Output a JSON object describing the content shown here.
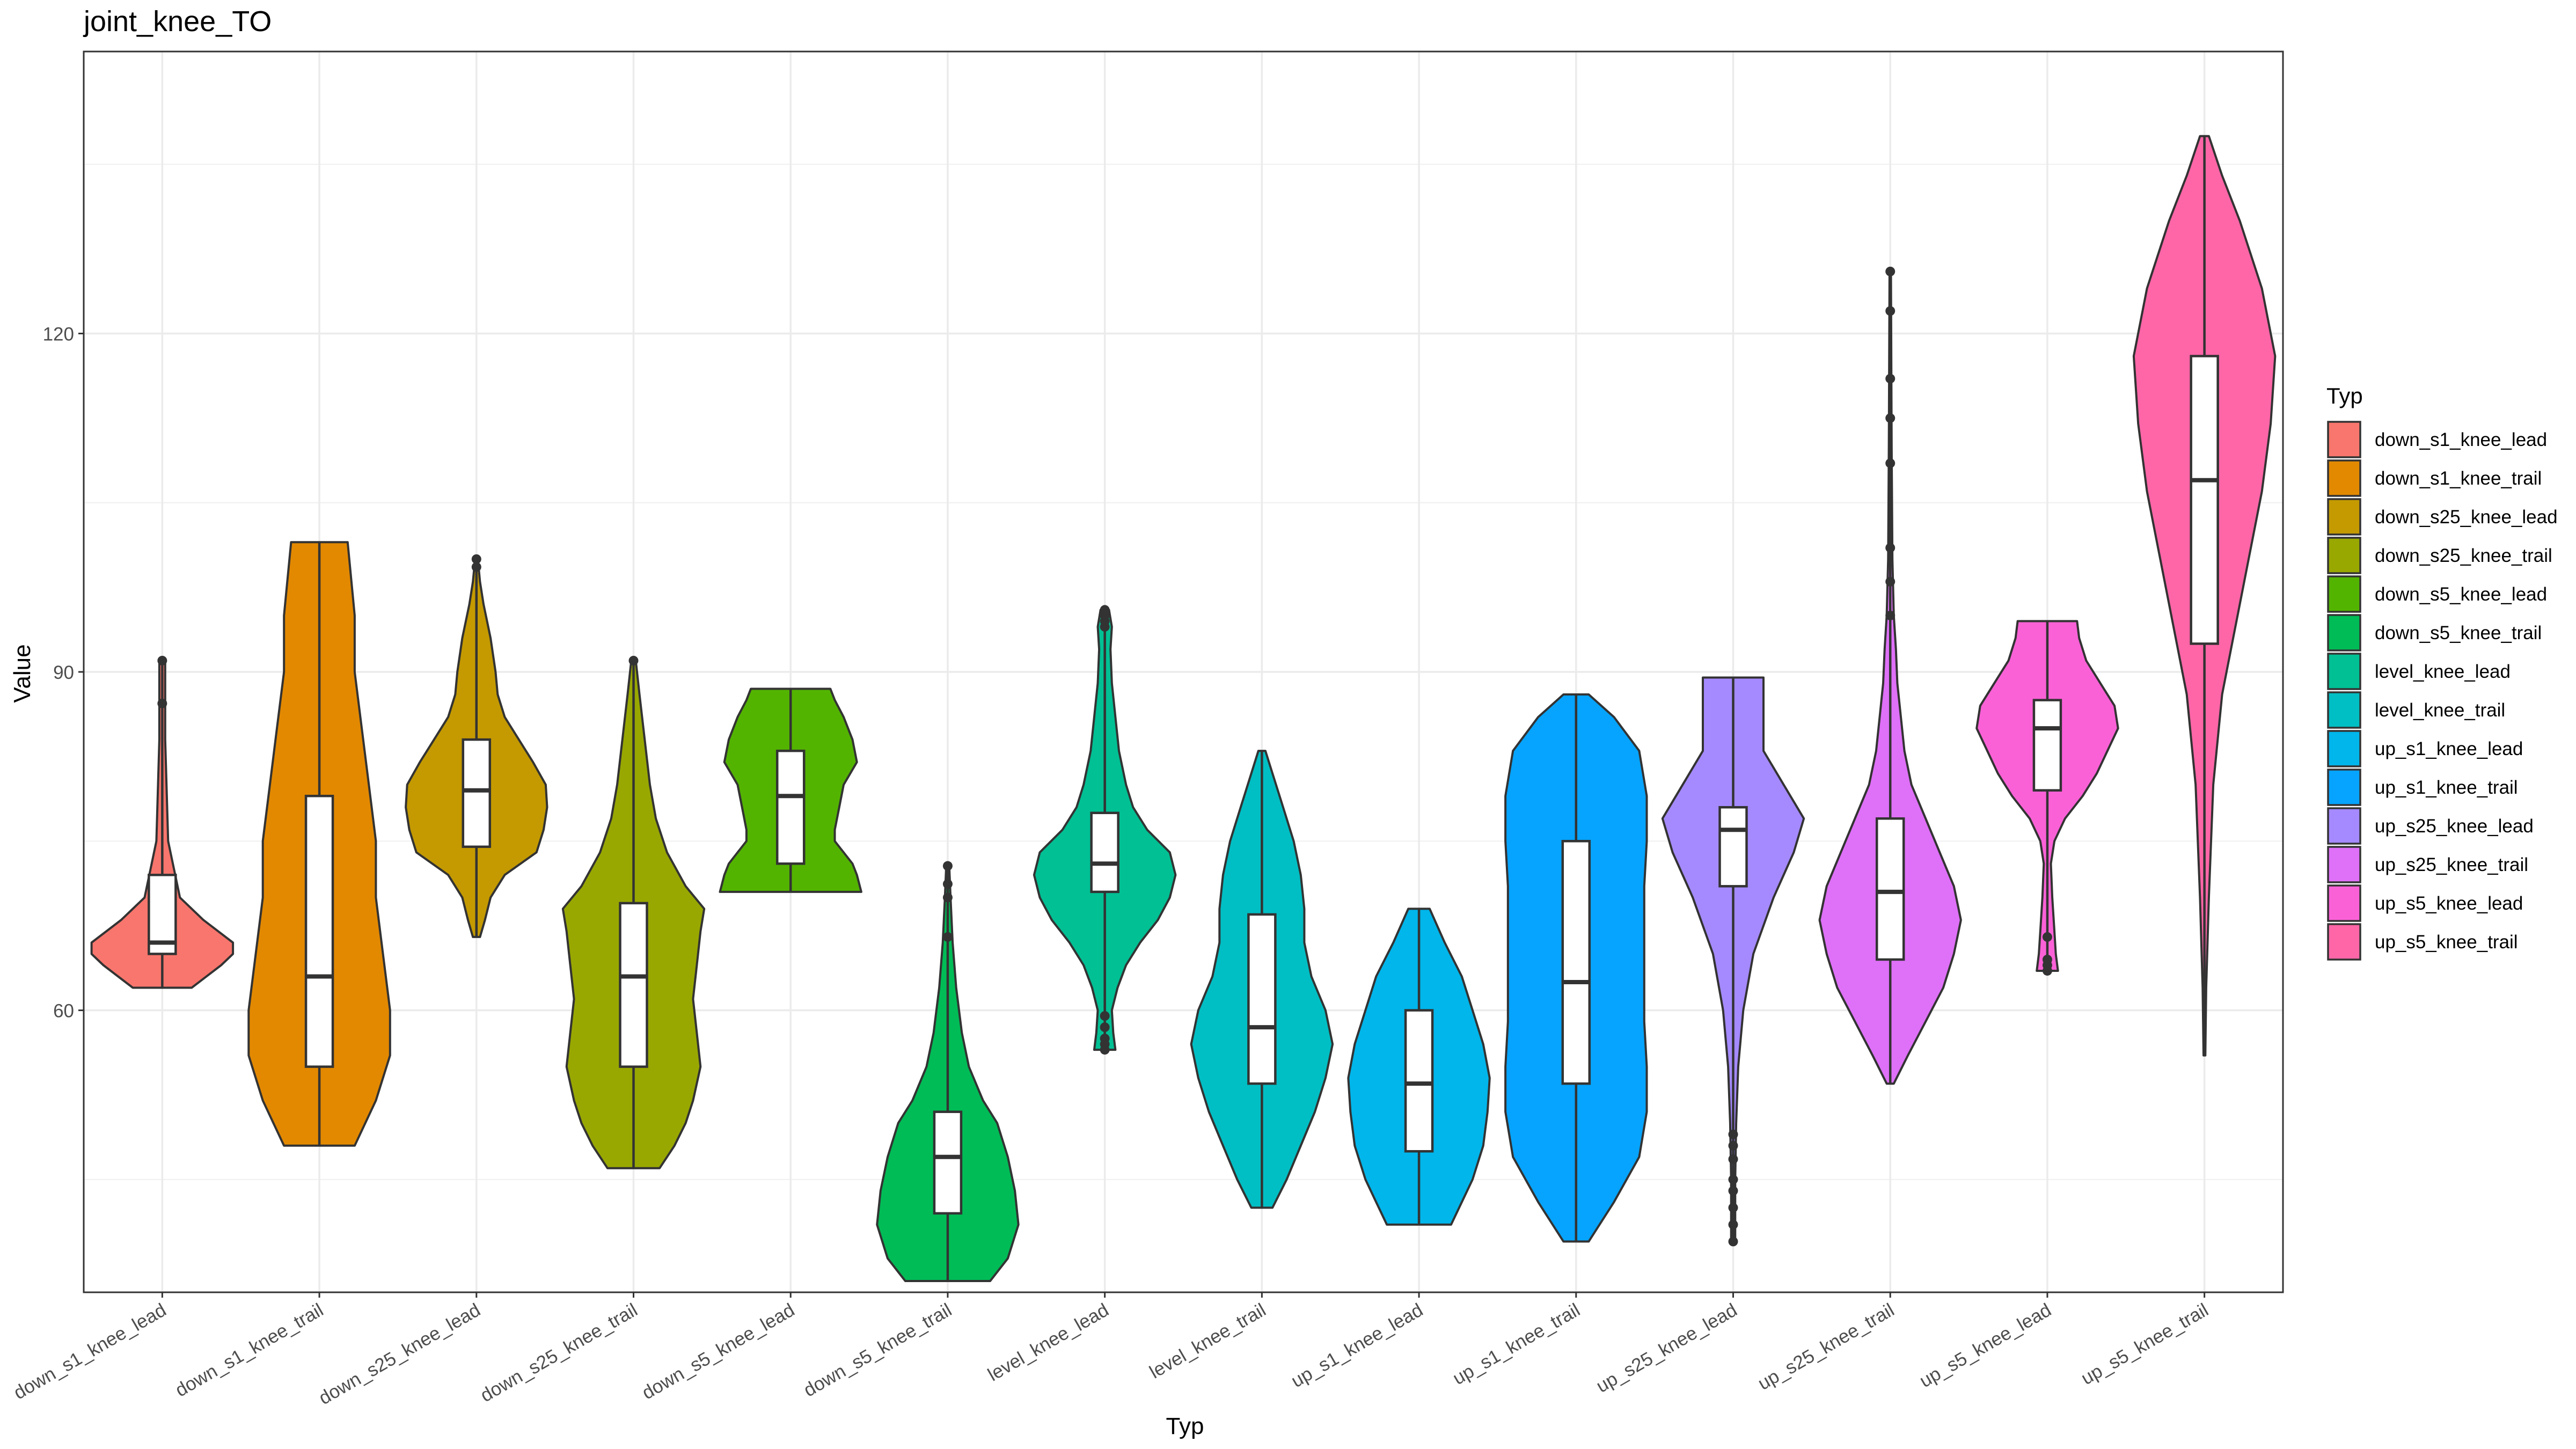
{
  "chart_data": {
    "type": "violin",
    "title": "joint_knee_TO",
    "xlabel": "Typ",
    "ylabel": "Value",
    "ylim": [
      35,
      145
    ],
    "yticks": [
      60,
      90,
      120
    ],
    "grid": true,
    "legend": {
      "title": "Typ",
      "position": "right"
    },
    "categories": [
      "down_s1_knee_lead",
      "down_s1_knee_trail",
      "down_s25_knee_lead",
      "down_s25_knee_trail",
      "down_s5_knee_lead",
      "down_s5_knee_trail",
      "level_knee_lead",
      "level_knee_trail",
      "up_s1_knee_lead",
      "up_s1_knee_trail",
      "up_s25_knee_lead",
      "up_s25_knee_trail",
      "up_s5_knee_lead",
      "up_s5_knee_trail"
    ],
    "colors": [
      "#F8766D",
      "#E38900",
      "#C49A00",
      "#99A800",
      "#53B400",
      "#00BC56",
      "#00C094",
      "#00BFC4",
      "#00B6EB",
      "#06A4FF",
      "#A58AFF",
      "#DF70F8",
      "#FB61D7",
      "#FF66A8"
    ],
    "series": [
      {
        "name": "down_s1_knee_lead",
        "min": 62,
        "q1": 65,
        "median": 66,
        "q3": 72,
        "max": 91,
        "outliers": [
          87.2,
          91
        ],
        "density": [
          [
            62,
            0.05
          ],
          [
            64,
            0.1
          ],
          [
            65,
            0.12
          ],
          [
            66,
            0.12
          ],
          [
            68,
            0.07
          ],
          [
            70,
            0.03
          ],
          [
            75,
            0.01
          ],
          [
            84,
            0.005
          ],
          [
            91,
            0.005
          ]
        ]
      },
      {
        "name": "down_s1_knee_trail",
        "min": 48,
        "q1": 55,
        "median": 63,
        "q3": 79,
        "max": 101.5,
        "outliers": [],
        "density": [
          [
            48,
            0.05
          ],
          [
            52,
            0.08
          ],
          [
            56,
            0.1
          ],
          [
            60,
            0.1
          ],
          [
            65,
            0.09
          ],
          [
            70,
            0.08
          ],
          [
            75,
            0.08
          ],
          [
            80,
            0.07
          ],
          [
            85,
            0.06
          ],
          [
            90,
            0.05
          ],
          [
            95,
            0.05
          ],
          [
            101.5,
            0.04
          ]
        ]
      },
      {
        "name": "down_s25_knee_lead",
        "min": 66.5,
        "q1": 74.5,
        "median": 79.5,
        "q3": 84,
        "max": 100,
        "outliers": [
          99.3,
          100
        ],
        "density": [
          [
            66.5,
            0.05
          ],
          [
            68,
            0.12
          ],
          [
            70,
            0.2
          ],
          [
            72,
            0.4
          ],
          [
            74,
            0.85
          ],
          [
            76,
            0.95
          ],
          [
            78,
            1.0
          ],
          [
            80,
            0.98
          ],
          [
            82,
            0.8
          ],
          [
            84,
            0.6
          ],
          [
            86,
            0.4
          ],
          [
            88,
            0.3
          ],
          [
            90,
            0.27
          ],
          [
            93,
            0.2
          ],
          [
            96,
            0.1
          ],
          [
            98,
            0.05
          ],
          [
            100,
            0.02
          ]
        ]
      },
      {
        "name": "down_s25_knee_trail",
        "min": 46,
        "q1": 55,
        "median": 63,
        "q3": 69.5,
        "max": 91,
        "outliers": [
          91
        ],
        "density": [
          [
            46,
            0.35
          ],
          [
            48,
            0.55
          ],
          [
            50,
            0.7
          ],
          [
            52,
            0.8
          ],
          [
            55,
            0.9
          ],
          [
            58,
            0.85
          ],
          [
            61,
            0.8
          ],
          [
            64,
            0.85
          ],
          [
            67,
            0.9
          ],
          [
            69,
            0.95
          ],
          [
            71,
            0.7
          ],
          [
            74,
            0.45
          ],
          [
            77,
            0.3
          ],
          [
            80,
            0.22
          ],
          [
            84,
            0.15
          ],
          [
            88,
            0.08
          ],
          [
            91,
            0.03
          ]
        ]
      },
      {
        "name": "down_s5_knee_lead",
        "min": 70.5,
        "q1": 73,
        "median": 79,
        "q3": 83,
        "max": 88.5,
        "outliers": [],
        "density": [
          [
            70.5,
            0.8
          ],
          [
            72,
            0.75
          ],
          [
            73,
            0.7
          ],
          [
            74,
            0.6
          ],
          [
            75,
            0.5
          ],
          [
            76,
            0.5
          ],
          [
            78,
            0.55
          ],
          [
            80,
            0.6
          ],
          [
            82,
            0.75
          ],
          [
            84,
            0.7
          ],
          [
            86,
            0.6
          ],
          [
            87.5,
            0.5
          ],
          [
            88.5,
            0.45
          ]
        ]
      },
      {
        "name": "down_s5_knee_trail",
        "min": 36,
        "q1": 42,
        "median": 47,
        "q3": 51,
        "max": 73,
        "outliers": [
          66.5,
          70,
          71.2,
          72.8
        ],
        "density": [
          [
            36,
            0.6
          ],
          [
            38,
            0.85
          ],
          [
            41,
            1.0
          ],
          [
            44,
            0.95
          ],
          [
            47,
            0.85
          ],
          [
            50,
            0.7
          ],
          [
            52,
            0.5
          ],
          [
            55,
            0.3
          ],
          [
            58,
            0.2
          ],
          [
            62,
            0.12
          ],
          [
            66,
            0.07
          ],
          [
            70,
            0.04
          ],
          [
            73,
            0.02
          ]
        ]
      },
      {
        "name": "level_knee_lead",
        "min": 56.5,
        "q1": 70.5,
        "median": 73,
        "q3": 77.5,
        "max": 95.5,
        "outliers": [
          56.5,
          57,
          57.5,
          58.5,
          59.5,
          94,
          94.5,
          95,
          95.5
        ],
        "density": [
          [
            56.5,
            0.15
          ],
          [
            58,
            0.12
          ],
          [
            60,
            0.1
          ],
          [
            62,
            0.18
          ],
          [
            64,
            0.3
          ],
          [
            66,
            0.5
          ],
          [
            68,
            0.75
          ],
          [
            70,
            0.92
          ],
          [
            72,
            1.0
          ],
          [
            74,
            0.92
          ],
          [
            76,
            0.6
          ],
          [
            78,
            0.4
          ],
          [
            80,
            0.3
          ],
          [
            83,
            0.2
          ],
          [
            86,
            0.15
          ],
          [
            89,
            0.1
          ],
          [
            92,
            0.08
          ],
          [
            94,
            0.1
          ],
          [
            95.5,
            0.06
          ]
        ]
      },
      {
        "name": "level_knee_trail",
        "min": 42.5,
        "q1": 53.5,
        "median": 58.5,
        "q3": 68.5,
        "max": 83,
        "outliers": [],
        "density": [
          [
            42.5,
            0.15
          ],
          [
            45,
            0.35
          ],
          [
            48,
            0.55
          ],
          [
            51,
            0.75
          ],
          [
            54,
            0.9
          ],
          [
            57,
            1.0
          ],
          [
            60,
            0.9
          ],
          [
            63,
            0.7
          ],
          [
            66,
            0.6
          ],
          [
            69,
            0.6
          ],
          [
            72,
            0.55
          ],
          [
            75,
            0.45
          ],
          [
            78,
            0.3
          ],
          [
            81,
            0.15
          ],
          [
            83,
            0.05
          ]
        ]
      },
      {
        "name": "up_s1_knee_lead",
        "min": 41,
        "q1": 47.5,
        "median": 53.5,
        "q3": 60,
        "max": 69,
        "outliers": [],
        "density": [
          [
            41,
            0.15
          ],
          [
            43,
            0.2
          ],
          [
            45,
            0.25
          ],
          [
            48,
            0.3
          ],
          [
            51,
            0.32
          ],
          [
            54,
            0.33
          ],
          [
            57,
            0.3
          ],
          [
            60,
            0.25
          ],
          [
            63,
            0.2
          ],
          [
            66,
            0.12
          ],
          [
            69,
            0.05
          ]
        ]
      },
      {
        "name": "up_s1_knee_trail",
        "min": 39.5,
        "q1": 53.5,
        "median": 62.5,
        "q3": 75,
        "max": 88,
        "outliers": [],
        "density": [
          [
            39.5,
            0.05
          ],
          [
            43,
            0.15
          ],
          [
            47,
            0.25
          ],
          [
            51,
            0.28
          ],
          [
            55,
            0.28
          ],
          [
            59,
            0.27
          ],
          [
            63,
            0.27
          ],
          [
            67,
            0.27
          ],
          [
            71,
            0.27
          ],
          [
            75,
            0.28
          ],
          [
            79,
            0.28
          ],
          [
            83,
            0.25
          ],
          [
            86,
            0.15
          ],
          [
            88,
            0.05
          ]
        ]
      },
      {
        "name": "up_s25_knee_lead",
        "min": 39.5,
        "q1": 71,
        "median": 76,
        "q3": 78,
        "max": 89.5,
        "outliers": [
          39.5,
          41,
          42.5,
          44,
          45,
          46.8,
          48,
          49
        ],
        "density": [
          [
            39.5,
            0.02
          ],
          [
            45,
            0.02
          ],
          [
            50,
            0.03
          ],
          [
            55,
            0.05
          ],
          [
            60,
            0.1
          ],
          [
            65,
            0.2
          ],
          [
            70,
            0.4
          ],
          [
            74,
            0.6
          ],
          [
            77,
            0.7
          ],
          [
            80,
            0.5
          ],
          [
            83,
            0.3
          ],
          [
            86,
            0.3
          ],
          [
            89.5,
            0.3
          ]
        ]
      },
      {
        "name": "up_s25_knee_trail",
        "min": 53.5,
        "q1": 64.5,
        "median": 70.5,
        "q3": 77,
        "max": 125.5,
        "outliers": [
          95,
          98,
          101,
          108.5,
          112.5,
          116,
          122,
          125.5
        ],
        "density": [
          [
            53.5,
            0.05
          ],
          [
            56,
            0.25
          ],
          [
            59,
            0.5
          ],
          [
            62,
            0.75
          ],
          [
            65,
            0.9
          ],
          [
            68,
            1.0
          ],
          [
            71,
            0.9
          ],
          [
            74,
            0.7
          ],
          [
            77,
            0.5
          ],
          [
            80,
            0.3
          ],
          [
            83,
            0.2
          ],
          [
            86,
            0.15
          ],
          [
            89,
            0.1
          ],
          [
            92,
            0.08
          ],
          [
            95,
            0.05
          ],
          [
            100,
            0.03
          ],
          [
            110,
            0.02
          ],
          [
            125.5,
            0.01
          ]
        ]
      },
      {
        "name": "up_s5_knee_lead",
        "min": 63.5,
        "q1": 79.5,
        "median": 85,
        "q3": 87.5,
        "max": 94.5,
        "outliers": [
          63.5,
          64,
          64.5,
          66.5
        ],
        "density": [
          [
            63.5,
            0.15
          ],
          [
            65,
            0.12
          ],
          [
            67,
            0.1
          ],
          [
            70,
            0.07
          ],
          [
            73,
            0.05
          ],
          [
            75,
            0.1
          ],
          [
            77,
            0.25
          ],
          [
            79,
            0.5
          ],
          [
            81,
            0.7
          ],
          [
            83,
            0.85
          ],
          [
            85,
            1.0
          ],
          [
            87,
            0.95
          ],
          [
            89,
            0.75
          ],
          [
            91,
            0.55
          ],
          [
            93,
            0.45
          ],
          [
            94.5,
            0.42
          ]
        ]
      },
      {
        "name": "up_s5_knee_trail",
        "min": 56,
        "q1": 92.5,
        "median": 107,
        "q3": 118,
        "max": 137.5,
        "outliers": [],
        "density": [
          [
            56,
            0.01
          ],
          [
            62,
            0.02
          ],
          [
            70,
            0.05
          ],
          [
            80,
            0.1
          ],
          [
            88,
            0.2
          ],
          [
            94,
            0.35
          ],
          [
            100,
            0.5
          ],
          [
            106,
            0.65
          ],
          [
            112,
            0.75
          ],
          [
            118,
            0.8
          ],
          [
            124,
            0.65
          ],
          [
            130,
            0.4
          ],
          [
            134,
            0.2
          ],
          [
            137.5,
            0.05
          ]
        ]
      }
    ]
  }
}
